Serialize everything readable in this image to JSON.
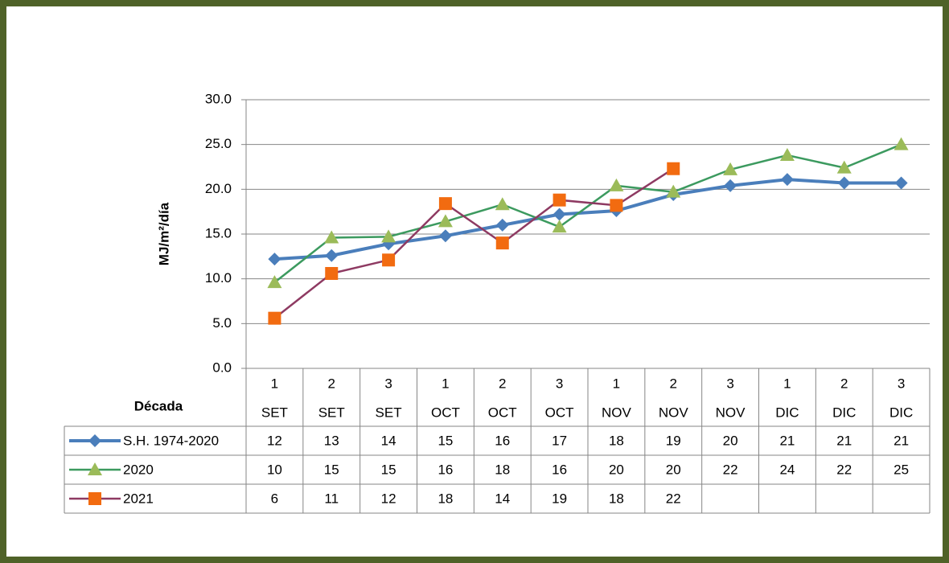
{
  "chart_data": {
    "type": "line",
    "y_label": "MJ/m²/día",
    "table_header": "Década",
    "categories": [
      [
        "1",
        "SET"
      ],
      [
        "2",
        "SET"
      ],
      [
        "3",
        "SET"
      ],
      [
        "1",
        "OCT"
      ],
      [
        "2",
        "OCT"
      ],
      [
        "3",
        "OCT"
      ],
      [
        "1",
        "NOV"
      ],
      [
        "2",
        "NOV"
      ],
      [
        "3",
        "NOV"
      ],
      [
        "1",
        "DIC"
      ],
      [
        "2",
        "DIC"
      ],
      [
        "3",
        "DIC"
      ]
    ],
    "ylim": [
      0,
      30
    ],
    "yticks": [
      {
        "value": 0,
        "label": "0.0"
      },
      {
        "value": 5,
        "label": "5.0"
      },
      {
        "value": 10,
        "label": "10.0"
      },
      {
        "value": 15,
        "label": "15.0"
      },
      {
        "value": 20,
        "label": "20.0"
      },
      {
        "value": 25,
        "label": "25.0"
      },
      {
        "value": 30,
        "label": "30.0"
      }
    ],
    "grid": true,
    "series": [
      {
        "name": "S.H. 1974-2020",
        "color": "#4a7ebb",
        "marker_color": "#4a7ebb",
        "marker": "diamond",
        "values": [
          12.2,
          12.6,
          13.9,
          14.8,
          16.0,
          17.2,
          17.6,
          19.4,
          20.4,
          21.1,
          20.7,
          20.7
        ],
        "value_labels": [
          "12",
          "13",
          "14",
          "15",
          "16",
          "17",
          "18",
          "19",
          "20",
          "21",
          "21",
          "21"
        ]
      },
      {
        "name": "2020",
        "color": "#3c9a5f",
        "marker_color": "#9bbb59",
        "marker": "triangle",
        "values": [
          9.6,
          14.6,
          14.7,
          16.4,
          18.3,
          15.8,
          20.4,
          19.7,
          22.2,
          23.8,
          22.4,
          25.0
        ],
        "value_labels": [
          "10",
          "15",
          "15",
          "16",
          "18",
          "16",
          "20",
          "20",
          "22",
          "24",
          "22",
          "25"
        ]
      },
      {
        "name": "2021",
        "color": "#8e3a62",
        "marker_color": "#f26b10",
        "marker": "square",
        "values": [
          5.6,
          10.6,
          12.1,
          18.4,
          14.0,
          18.8,
          18.2,
          22.3,
          null,
          null,
          null,
          null
        ],
        "value_labels": [
          "6",
          "11",
          "12",
          "18",
          "14",
          "19",
          "18",
          "22",
          null,
          null,
          null,
          null
        ]
      }
    ]
  }
}
